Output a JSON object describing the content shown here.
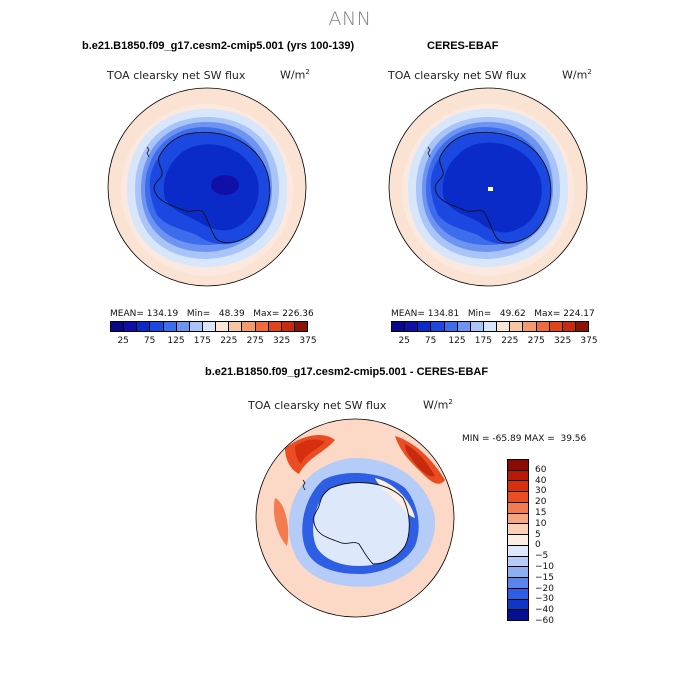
{
  "main_title": "ANN",
  "panels": [
    {
      "title": "b.e21.B1850.f09_g17.cesm2-cmip5.001 (yrs 100-139)",
      "plot_label": "TOA clearsky net SW flux",
      "units_base": "W/m",
      "units_exp": "2",
      "stats_text": "MEAN= 134.19   Min=   48.39   Max= 226.36",
      "colorbar_ticks": [
        "25",
        "75",
        "125",
        "175",
        "225",
        "275",
        "325",
        "375"
      ]
    },
    {
      "title": "CERES-EBAF",
      "plot_label": "TOA clearsky net SW flux",
      "units_base": "W/m",
      "units_exp": "2",
      "stats_text": "MEAN= 134.81   Min=   49.62   Max= 224.17",
      "colorbar_ticks": [
        "25",
        "75",
        "125",
        "175",
        "225",
        "275",
        "325",
        "375"
      ]
    }
  ],
  "diff_panel": {
    "title": "b.e21.B1850.f09_g17.cesm2-cmip5.001 - CERES-EBAF",
    "plot_label": "TOA clearsky net SW flux",
    "units_base": "W/m",
    "units_exp": "2",
    "stats_text": "MIN = -65.89 MAX =  39.56",
    "colorbar_ticks": [
      "60",
      "40",
      "30",
      "20",
      "15",
      "10",
      "5",
      "0",
      "−5",
      "−10",
      "−15",
      "−20",
      "−30",
      "−40",
      "−60"
    ]
  },
  "colors": {
    "seq_scale": [
      "#08088a",
      "#1010a8",
      "#0a2bc8",
      "#1a48e0",
      "#3d6cec",
      "#6e94f2",
      "#a9c4f8",
      "#d8e6fb",
      "#fbe6d6",
      "#f9c6a4",
      "#f59a6c",
      "#ef6a3d",
      "#e3431a",
      "#c72a0c",
      "#8b1505"
    ],
    "diff_scale": [
      "#8b0a02",
      "#b81a05",
      "#d62f10",
      "#ea4d22",
      "#f27b4f",
      "#f7a583",
      "#fbd0b6",
      "#fdeee3",
      "#dde9fb",
      "#b4ccf7",
      "#8cb0f2",
      "#5a86ec",
      "#2d5ee3",
      "#0f36c6",
      "#06108e"
    ],
    "antarctica_dark": "#1e3fd8",
    "ocean_far": "#fbe3d3"
  }
}
